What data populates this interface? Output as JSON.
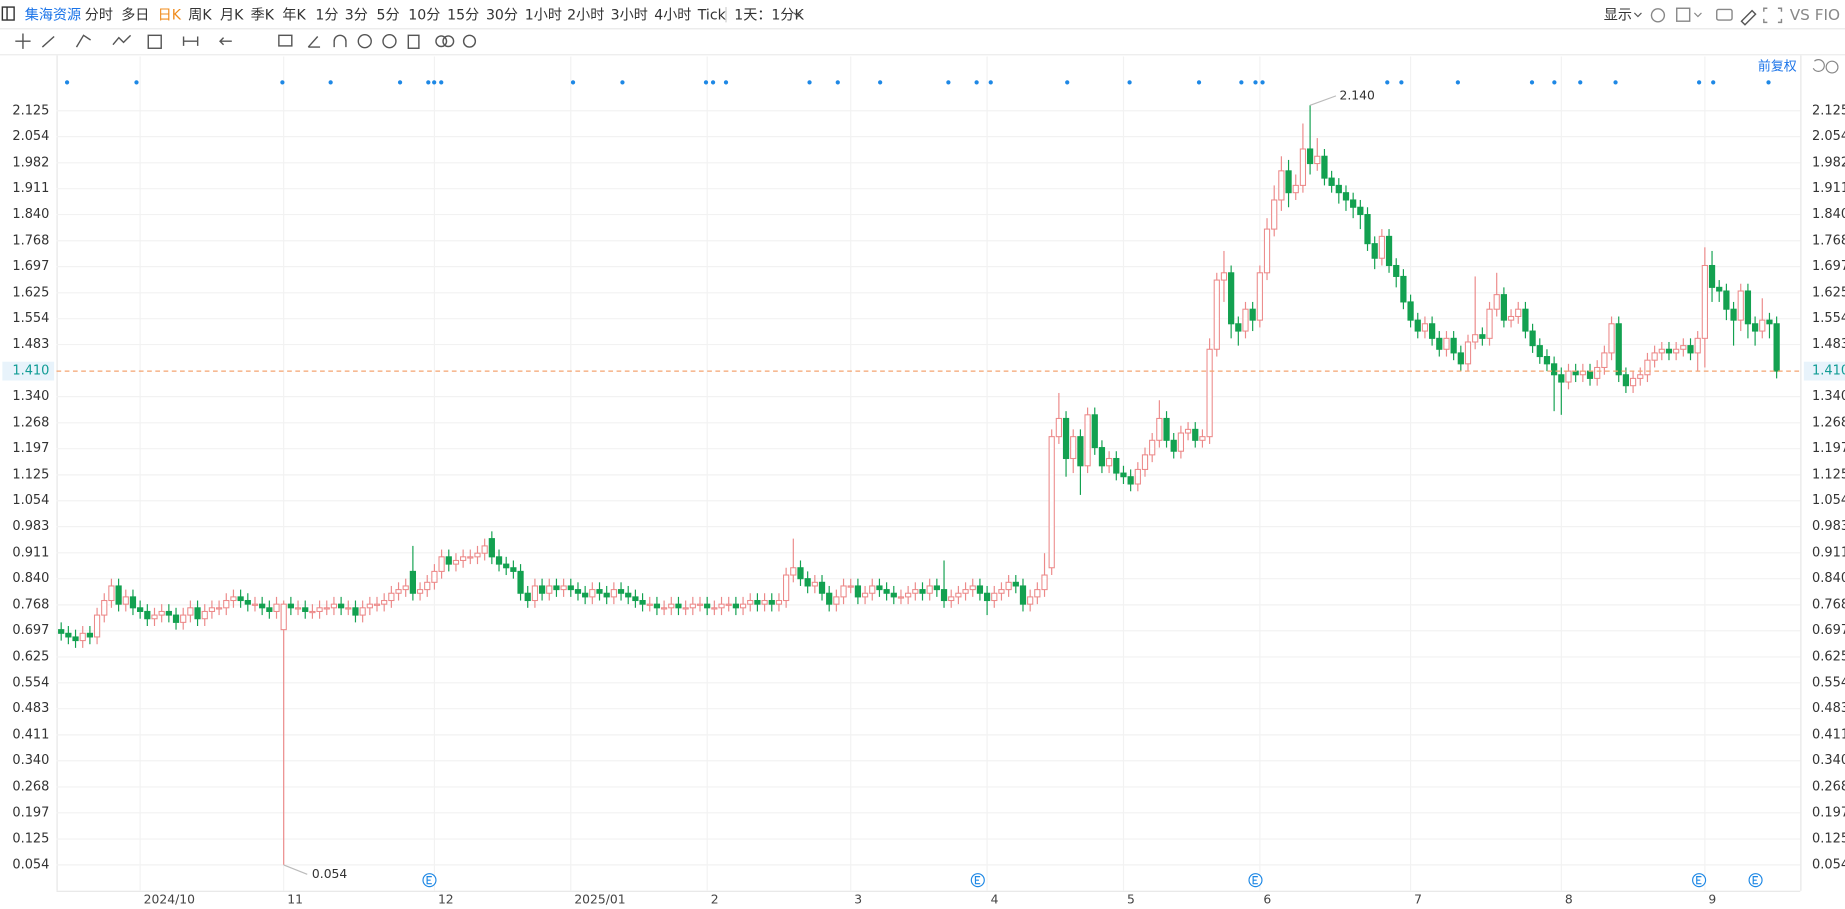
{
  "toolbar": {
    "stock": "集海资源",
    "periods": [
      {
        "label": "分时",
        "active": false
      },
      {
        "label": "多日",
        "active": false
      },
      {
        "label": "日K",
        "active": true
      },
      {
        "label": "周K",
        "active": false
      },
      {
        "label": "月K",
        "active": false
      },
      {
        "label": "季K",
        "active": false
      },
      {
        "label": "年K",
        "active": false
      },
      {
        "label": "1分",
        "active": false
      },
      {
        "label": "3分",
        "active": false
      },
      {
        "label": "5分",
        "active": false
      },
      {
        "label": "10分",
        "active": false
      },
      {
        "label": "15分",
        "active": false
      },
      {
        "label": "30分",
        "active": false
      },
      {
        "label": "1小时",
        "active": false
      },
      {
        "label": "2小时",
        "active": false
      },
      {
        "label": "3小时",
        "active": false
      },
      {
        "label": "4小时",
        "active": false
      },
      {
        "label": "Tick",
        "active": false
      }
    ],
    "interval_menu": "1天：1分K",
    "display_menu": "显示",
    "compare": "VS FIO",
    "adjust": "前复权"
  },
  "chart_data": {
    "type": "candlestick",
    "up_color": "#ec8a8a",
    "down_color": "#13a150",
    "grid": true,
    "ylim": [
      -0.017,
      2.274
    ],
    "yticks": [
      0.054,
      0.125,
      0.197,
      0.268,
      {
        "value": 0.34,
        "label": "0.340"
      },
      0.411,
      0.483,
      0.554,
      0.625,
      0.697,
      0.768,
      {
        "value": 0.84,
        "label": "0.840"
      },
      0.911,
      0.983,
      1.054,
      1.125,
      1.197,
      1.268,
      {
        "value": 1.34,
        "label": "1.340"
      },
      1.483,
      1.554,
      1.625,
      1.697,
      1.768,
      {
        "value": 1.84,
        "label": "1.840"
      },
      1.911,
      1.982,
      2.054,
      2.125
    ],
    "last_price": {
      "value": 1.41,
      "label": "1.410"
    },
    "high_annotation": {
      "value": 2.14,
      "label": "2.140"
    },
    "low_annotation": {
      "value": 0.054,
      "label": "0.054"
    },
    "categories": [
      null,
      null,
      null,
      null,
      null,
      null,
      null,
      null,
      null,
      null,
      null,
      "2024/10",
      null,
      null,
      null,
      null,
      null,
      null,
      null,
      null,
      null,
      null,
      null,
      null,
      null,
      null,
      null,
      null,
      null,
      null,
      null,
      "11",
      null,
      null,
      null,
      null,
      null,
      null,
      null,
      null,
      null,
      null,
      null,
      null,
      null,
      null,
      null,
      null,
      null,
      null,
      null,
      null,
      "12",
      null,
      null,
      null,
      null,
      null,
      null,
      null,
      null,
      null,
      null,
      null,
      null,
      null,
      null,
      null,
      null,
      null,
      null,
      "2025/01",
      null,
      null,
      null,
      null,
      null,
      null,
      null,
      null,
      null,
      null,
      null,
      null,
      null,
      null,
      null,
      null,
      null,
      null,
      "2",
      null,
      null,
      null,
      null,
      null,
      null,
      null,
      null,
      null,
      null,
      null,
      null,
      null,
      null,
      null,
      null,
      null,
      null,
      null,
      "3",
      null,
      null,
      null,
      null,
      null,
      null,
      null,
      null,
      null,
      null,
      null,
      null,
      null,
      null,
      null,
      null,
      null,
      null,
      "4",
      null,
      null,
      null,
      null,
      null,
      null,
      null,
      null,
      null,
      null,
      null,
      null,
      null,
      null,
      null,
      null,
      null,
      null,
      "5",
      null,
      null,
      null,
      null,
      null,
      null,
      null,
      null,
      null,
      null,
      null,
      null,
      null,
      null,
      null,
      null,
      null,
      null,
      "6",
      null,
      null,
      null,
      null,
      null,
      null,
      null,
      null,
      null,
      null,
      null,
      null,
      null,
      null,
      null,
      null,
      null,
      null,
      null,
      null,
      "7",
      null,
      null,
      null,
      null,
      null,
      null,
      null,
      null,
      null,
      null,
      null,
      null,
      null,
      null,
      null,
      null,
      null,
      null,
      null,
      null,
      "8",
      null,
      null,
      null,
      null,
      null,
      null,
      null,
      null,
      null,
      null,
      null,
      null,
      null,
      null,
      null,
      null,
      null,
      null,
      null,
      "9",
      null,
      null,
      null,
      null,
      null,
      null,
      null,
      null,
      null,
      null
    ],
    "open": [
      0.7,
      0.69,
      0.68,
      0.67,
      0.69,
      0.68,
      0.74,
      0.78,
      0.82,
      0.77,
      0.79,
      0.76,
      0.75,
      0.73,
      0.74,
      0.75,
      0.74,
      0.72,
      0.74,
      0.76,
      0.73,
      0.75,
      0.76,
      0.76,
      0.78,
      0.79,
      0.78,
      0.77,
      0.77,
      0.76,
      0.75,
      0.7,
      0.77,
      0.76,
      0.76,
      0.75,
      0.75,
      0.76,
      0.76,
      0.77,
      0.76,
      0.76,
      0.74,
      0.76,
      0.77,
      0.77,
      0.78,
      0.8,
      0.81,
      0.86,
      0.8,
      0.81,
      0.83,
      0.86,
      0.9,
      0.88,
      0.89,
      0.9,
      0.9,
      0.91,
      0.95,
      0.9,
      0.88,
      0.87,
      0.86,
      0.8,
      0.78,
      0.82,
      0.8,
      0.82,
      0.81,
      0.82,
      0.81,
      0.8,
      0.79,
      0.81,
      0.8,
      0.79,
      0.81,
      0.8,
      0.79,
      0.78,
      0.77,
      0.77,
      0.76,
      0.76,
      0.77,
      0.76,
      0.76,
      0.77,
      0.77,
      0.76,
      0.76,
      0.77,
      0.77,
      0.76,
      0.77,
      0.78,
      0.77,
      0.78,
      0.77,
      0.78,
      0.85,
      0.87,
      0.84,
      0.82,
      0.83,
      0.8,
      0.77,
      0.79,
      0.82,
      0.82,
      0.79,
      0.8,
      0.82,
      0.81,
      0.8,
      0.79,
      0.79,
      0.8,
      0.81,
      0.8,
      0.82,
      0.81,
      0.78,
      0.79,
      0.8,
      0.81,
      0.82,
      0.8,
      0.78,
      0.8,
      0.81,
      0.83,
      0.82,
      0.77,
      0.79,
      0.81,
      0.87,
      1.23,
      1.28,
      1.17,
      1.23,
      1.15,
      1.29,
      1.2,
      1.15,
      1.17,
      1.13,
      1.12,
      1.1,
      1.14,
      1.18,
      1.22,
      1.28,
      1.22,
      1.19,
      1.24,
      1.25,
      1.22,
      1.23,
      1.47,
      1.66,
      1.68,
      1.54,
      1.52,
      1.58,
      1.55,
      1.68,
      1.8,
      1.88,
      1.96,
      1.9,
      1.92,
      2.02,
      1.98,
      2.0,
      1.94,
      1.92,
      1.9,
      1.88,
      1.86,
      1.84,
      1.76,
      1.72,
      1.78,
      1.7,
      1.67,
      1.6,
      1.55,
      1.52,
      1.54,
      1.5,
      1.47,
      1.5,
      1.46,
      1.43,
      1.49,
      1.51,
      1.5,
      1.58,
      1.62,
      1.55,
      1.56,
      1.58,
      1.52,
      1.48,
      1.45,
      1.43,
      1.4,
      1.38,
      1.41,
      1.4,
      1.41,
      1.39,
      1.42,
      1.46,
      1.54,
      1.4,
      1.37,
      1.39,
      1.4,
      1.44,
      1.46,
      1.47,
      1.46,
      1.47,
      1.48,
      1.46,
      1.5,
      1.7,
      1.64,
      1.63,
      1.58,
      1.55,
      1.63,
      1.54,
      1.52,
      1.55,
      1.54
    ],
    "high": [
      0.72,
      0.71,
      0.7,
      0.71,
      0.71,
      0.76,
      0.8,
      0.84,
      0.84,
      0.81,
      0.81,
      0.78,
      0.77,
      0.76,
      0.77,
      0.77,
      0.76,
      0.76,
      0.78,
      0.78,
      0.77,
      0.78,
      0.78,
      0.8,
      0.81,
      0.81,
      0.8,
      0.79,
      0.79,
      0.78,
      0.79,
      0.78,
      0.79,
      0.78,
      0.78,
      0.77,
      0.78,
      0.78,
      0.79,
      0.79,
      0.78,
      0.78,
      0.78,
      0.79,
      0.79,
      0.8,
      0.82,
      0.83,
      0.84,
      0.93,
      0.83,
      0.85,
      0.88,
      0.92,
      0.92,
      0.91,
      0.92,
      0.92,
      0.93,
      0.95,
      0.97,
      0.92,
      0.9,
      0.89,
      0.88,
      0.82,
      0.84,
      0.84,
      0.84,
      0.84,
      0.84,
      0.84,
      0.83,
      0.82,
      0.83,
      0.83,
      0.82,
      0.83,
      0.83,
      0.82,
      0.81,
      0.8,
      0.79,
      0.79,
      0.78,
      0.79,
      0.79,
      0.78,
      0.79,
      0.79,
      0.79,
      0.78,
      0.79,
      0.79,
      0.79,
      0.79,
      0.8,
      0.8,
      0.8,
      0.8,
      0.8,
      0.87,
      0.95,
      0.89,
      0.86,
      0.85,
      0.85,
      0.82,
      0.81,
      0.84,
      0.84,
      0.84,
      0.82,
      0.84,
      0.84,
      0.83,
      0.82,
      0.81,
      0.82,
      0.83,
      0.83,
      0.84,
      0.84,
      0.89,
      0.81,
      0.82,
      0.83,
      0.84,
      0.84,
      0.82,
      0.82,
      0.83,
      0.85,
      0.85,
      0.84,
      0.81,
      0.83,
      0.91,
      1.25,
      1.35,
      1.3,
      1.25,
      1.25,
      1.31,
      1.31,
      1.22,
      1.19,
      1.19,
      1.15,
      1.14,
      1.16,
      1.2,
      1.24,
      1.33,
      1.3,
      1.24,
      1.26,
      1.27,
      1.27,
      1.25,
      1.5,
      1.68,
      1.74,
      1.7,
      1.56,
      1.6,
      1.6,
      1.7,
      1.83,
      1.92,
      2.0,
      1.99,
      1.95,
      2.09,
      2.14,
      2.05,
      2.02,
      1.96,
      1.94,
      1.92,
      1.9,
      1.88,
      1.86,
      1.78,
      1.8,
      1.8,
      1.72,
      1.69,
      1.62,
      1.57,
      1.56,
      1.56,
      1.52,
      1.52,
      1.52,
      1.48,
      1.51,
      1.67,
      1.53,
      1.6,
      1.68,
      1.64,
      1.58,
      1.6,
      1.6,
      1.54,
      1.5,
      1.47,
      1.45,
      1.42,
      1.43,
      1.43,
      1.43,
      1.43,
      1.44,
      1.48,
      1.56,
      1.56,
      1.42,
      1.41,
      1.42,
      1.46,
      1.48,
      1.49,
      1.49,
      1.49,
      1.5,
      1.5,
      1.52,
      1.75,
      1.74,
      1.66,
      1.65,
      1.6,
      1.65,
      1.65,
      1.56,
      1.61,
      1.57,
      1.56
    ],
    "low": [
      0.67,
      0.66,
      0.65,
      0.65,
      0.66,
      0.66,
      0.72,
      0.76,
      0.75,
      0.75,
      0.74,
      0.73,
      0.71,
      0.71,
      0.72,
      0.72,
      0.7,
      0.7,
      0.72,
      0.71,
      0.71,
      0.73,
      0.74,
      0.74,
      0.76,
      0.76,
      0.75,
      0.75,
      0.74,
      0.73,
      0.73,
      0.054,
      0.74,
      0.74,
      0.73,
      0.73,
      0.73,
      0.74,
      0.74,
      0.74,
      0.74,
      0.72,
      0.72,
      0.74,
      0.75,
      0.75,
      0.76,
      0.78,
      0.79,
      0.78,
      0.78,
      0.79,
      0.81,
      0.84,
      0.86,
      0.86,
      0.87,
      0.88,
      0.88,
      0.89,
      0.88,
      0.86,
      0.85,
      0.84,
      0.78,
      0.76,
      0.76,
      0.78,
      0.78,
      0.79,
      0.79,
      0.79,
      0.78,
      0.77,
      0.77,
      0.78,
      0.77,
      0.77,
      0.78,
      0.77,
      0.76,
      0.75,
      0.75,
      0.74,
      0.74,
      0.74,
      0.74,
      0.74,
      0.74,
      0.75,
      0.74,
      0.74,
      0.74,
      0.75,
      0.74,
      0.74,
      0.75,
      0.75,
      0.75,
      0.75,
      0.75,
      0.76,
      0.83,
      0.82,
      0.8,
      0.8,
      0.78,
      0.75,
      0.75,
      0.77,
      0.8,
      0.77,
      0.77,
      0.78,
      0.79,
      0.78,
      0.77,
      0.77,
      0.77,
      0.78,
      0.78,
      0.78,
      0.79,
      0.76,
      0.76,
      0.77,
      0.78,
      0.79,
      0.78,
      0.74,
      0.76,
      0.78,
      0.79,
      0.8,
      0.75,
      0.75,
      0.77,
      0.79,
      0.85,
      1.21,
      1.12,
      1.13,
      1.07,
      1.13,
      1.18,
      1.13,
      1.13,
      1.11,
      1.1,
      1.08,
      1.08,
      1.12,
      1.16,
      1.2,
      1.2,
      1.17,
      1.17,
      1.22,
      1.2,
      1.2,
      1.21,
      1.45,
      1.6,
      1.5,
      1.48,
      1.5,
      1.52,
      1.53,
      1.66,
      1.78,
      1.85,
      1.86,
      1.88,
      1.9,
      1.95,
      1.96,
      1.92,
      1.9,
      1.87,
      1.85,
      1.83,
      1.8,
      1.74,
      1.69,
      1.7,
      1.68,
      1.64,
      1.58,
      1.53,
      1.5,
      1.5,
      1.48,
      1.45,
      1.45,
      1.44,
      1.41,
      1.41,
      1.47,
      1.48,
      1.48,
      1.56,
      1.53,
      1.53,
      1.54,
      1.5,
      1.46,
      1.43,
      1.41,
      1.3,
      1.29,
      1.36,
      1.38,
      1.38,
      1.37,
      1.37,
      1.4,
      1.44,
      1.38,
      1.35,
      1.35,
      1.37,
      1.38,
      1.42,
      1.44,
      1.44,
      1.44,
      1.45,
      1.44,
      1.41,
      1.42,
      1.6,
      1.6,
      1.55,
      1.48,
      1.52,
      1.5,
      1.48,
      1.5,
      1.5,
      1.39
    ],
    "close": [
      0.69,
      0.68,
      0.67,
      0.69,
      0.68,
      0.74,
      0.78,
      0.82,
      0.77,
      0.79,
      0.76,
      0.75,
      0.73,
      0.74,
      0.75,
      0.74,
      0.72,
      0.74,
      0.76,
      0.73,
      0.75,
      0.76,
      0.76,
      0.78,
      0.79,
      0.78,
      0.77,
      0.77,
      0.76,
      0.75,
      0.77,
      0.77,
      0.76,
      0.76,
      0.75,
      0.75,
      0.76,
      0.76,
      0.77,
      0.76,
      0.76,
      0.74,
      0.76,
      0.77,
      0.77,
      0.78,
      0.8,
      0.81,
      0.82,
      0.8,
      0.81,
      0.83,
      0.86,
      0.9,
      0.88,
      0.89,
      0.9,
      0.9,
      0.91,
      0.93,
      0.9,
      0.88,
      0.87,
      0.86,
      0.8,
      0.78,
      0.82,
      0.8,
      0.82,
      0.81,
      0.82,
      0.81,
      0.8,
      0.79,
      0.81,
      0.8,
      0.79,
      0.81,
      0.8,
      0.79,
      0.78,
      0.77,
      0.77,
      0.76,
      0.76,
      0.77,
      0.76,
      0.76,
      0.77,
      0.77,
      0.76,
      0.76,
      0.77,
      0.77,
      0.76,
      0.77,
      0.78,
      0.77,
      0.78,
      0.77,
      0.78,
      0.85,
      0.87,
      0.84,
      0.82,
      0.83,
      0.8,
      0.77,
      0.79,
      0.82,
      0.82,
      0.79,
      0.8,
      0.82,
      0.81,
      0.8,
      0.79,
      0.79,
      0.8,
      0.81,
      0.8,
      0.82,
      0.81,
      0.78,
      0.79,
      0.8,
      0.81,
      0.82,
      0.8,
      0.78,
      0.8,
      0.81,
      0.83,
      0.82,
      0.77,
      0.79,
      0.81,
      0.85,
      1.23,
      1.28,
      1.17,
      1.23,
      1.15,
      1.29,
      1.2,
      1.15,
      1.17,
      1.13,
      1.12,
      1.1,
      1.14,
      1.18,
      1.22,
      1.28,
      1.22,
      1.19,
      1.24,
      1.25,
      1.22,
      1.23,
      1.47,
      1.66,
      1.68,
      1.54,
      1.52,
      1.58,
      1.55,
      1.68,
      1.8,
      1.88,
      1.96,
      1.9,
      1.92,
      2.02,
      1.98,
      2.0,
      1.94,
      1.92,
      1.9,
      1.88,
      1.86,
      1.84,
      1.76,
      1.72,
      1.78,
      1.7,
      1.67,
      1.6,
      1.55,
      1.52,
      1.54,
      1.5,
      1.47,
      1.5,
      1.46,
      1.43,
      1.49,
      1.51,
      1.5,
      1.58,
      1.62,
      1.55,
      1.56,
      1.58,
      1.52,
      1.48,
      1.45,
      1.43,
      1.4,
      1.38,
      1.41,
      1.4,
      1.41,
      1.39,
      1.42,
      1.46,
      1.54,
      1.4,
      1.37,
      1.39,
      1.4,
      1.44,
      1.46,
      1.47,
      1.46,
      1.47,
      1.48,
      1.46,
      1.5,
      1.7,
      1.64,
      1.63,
      1.58,
      1.55,
      1.63,
      1.54,
      1.52,
      1.55,
      1.54,
      1.41
    ]
  }
}
